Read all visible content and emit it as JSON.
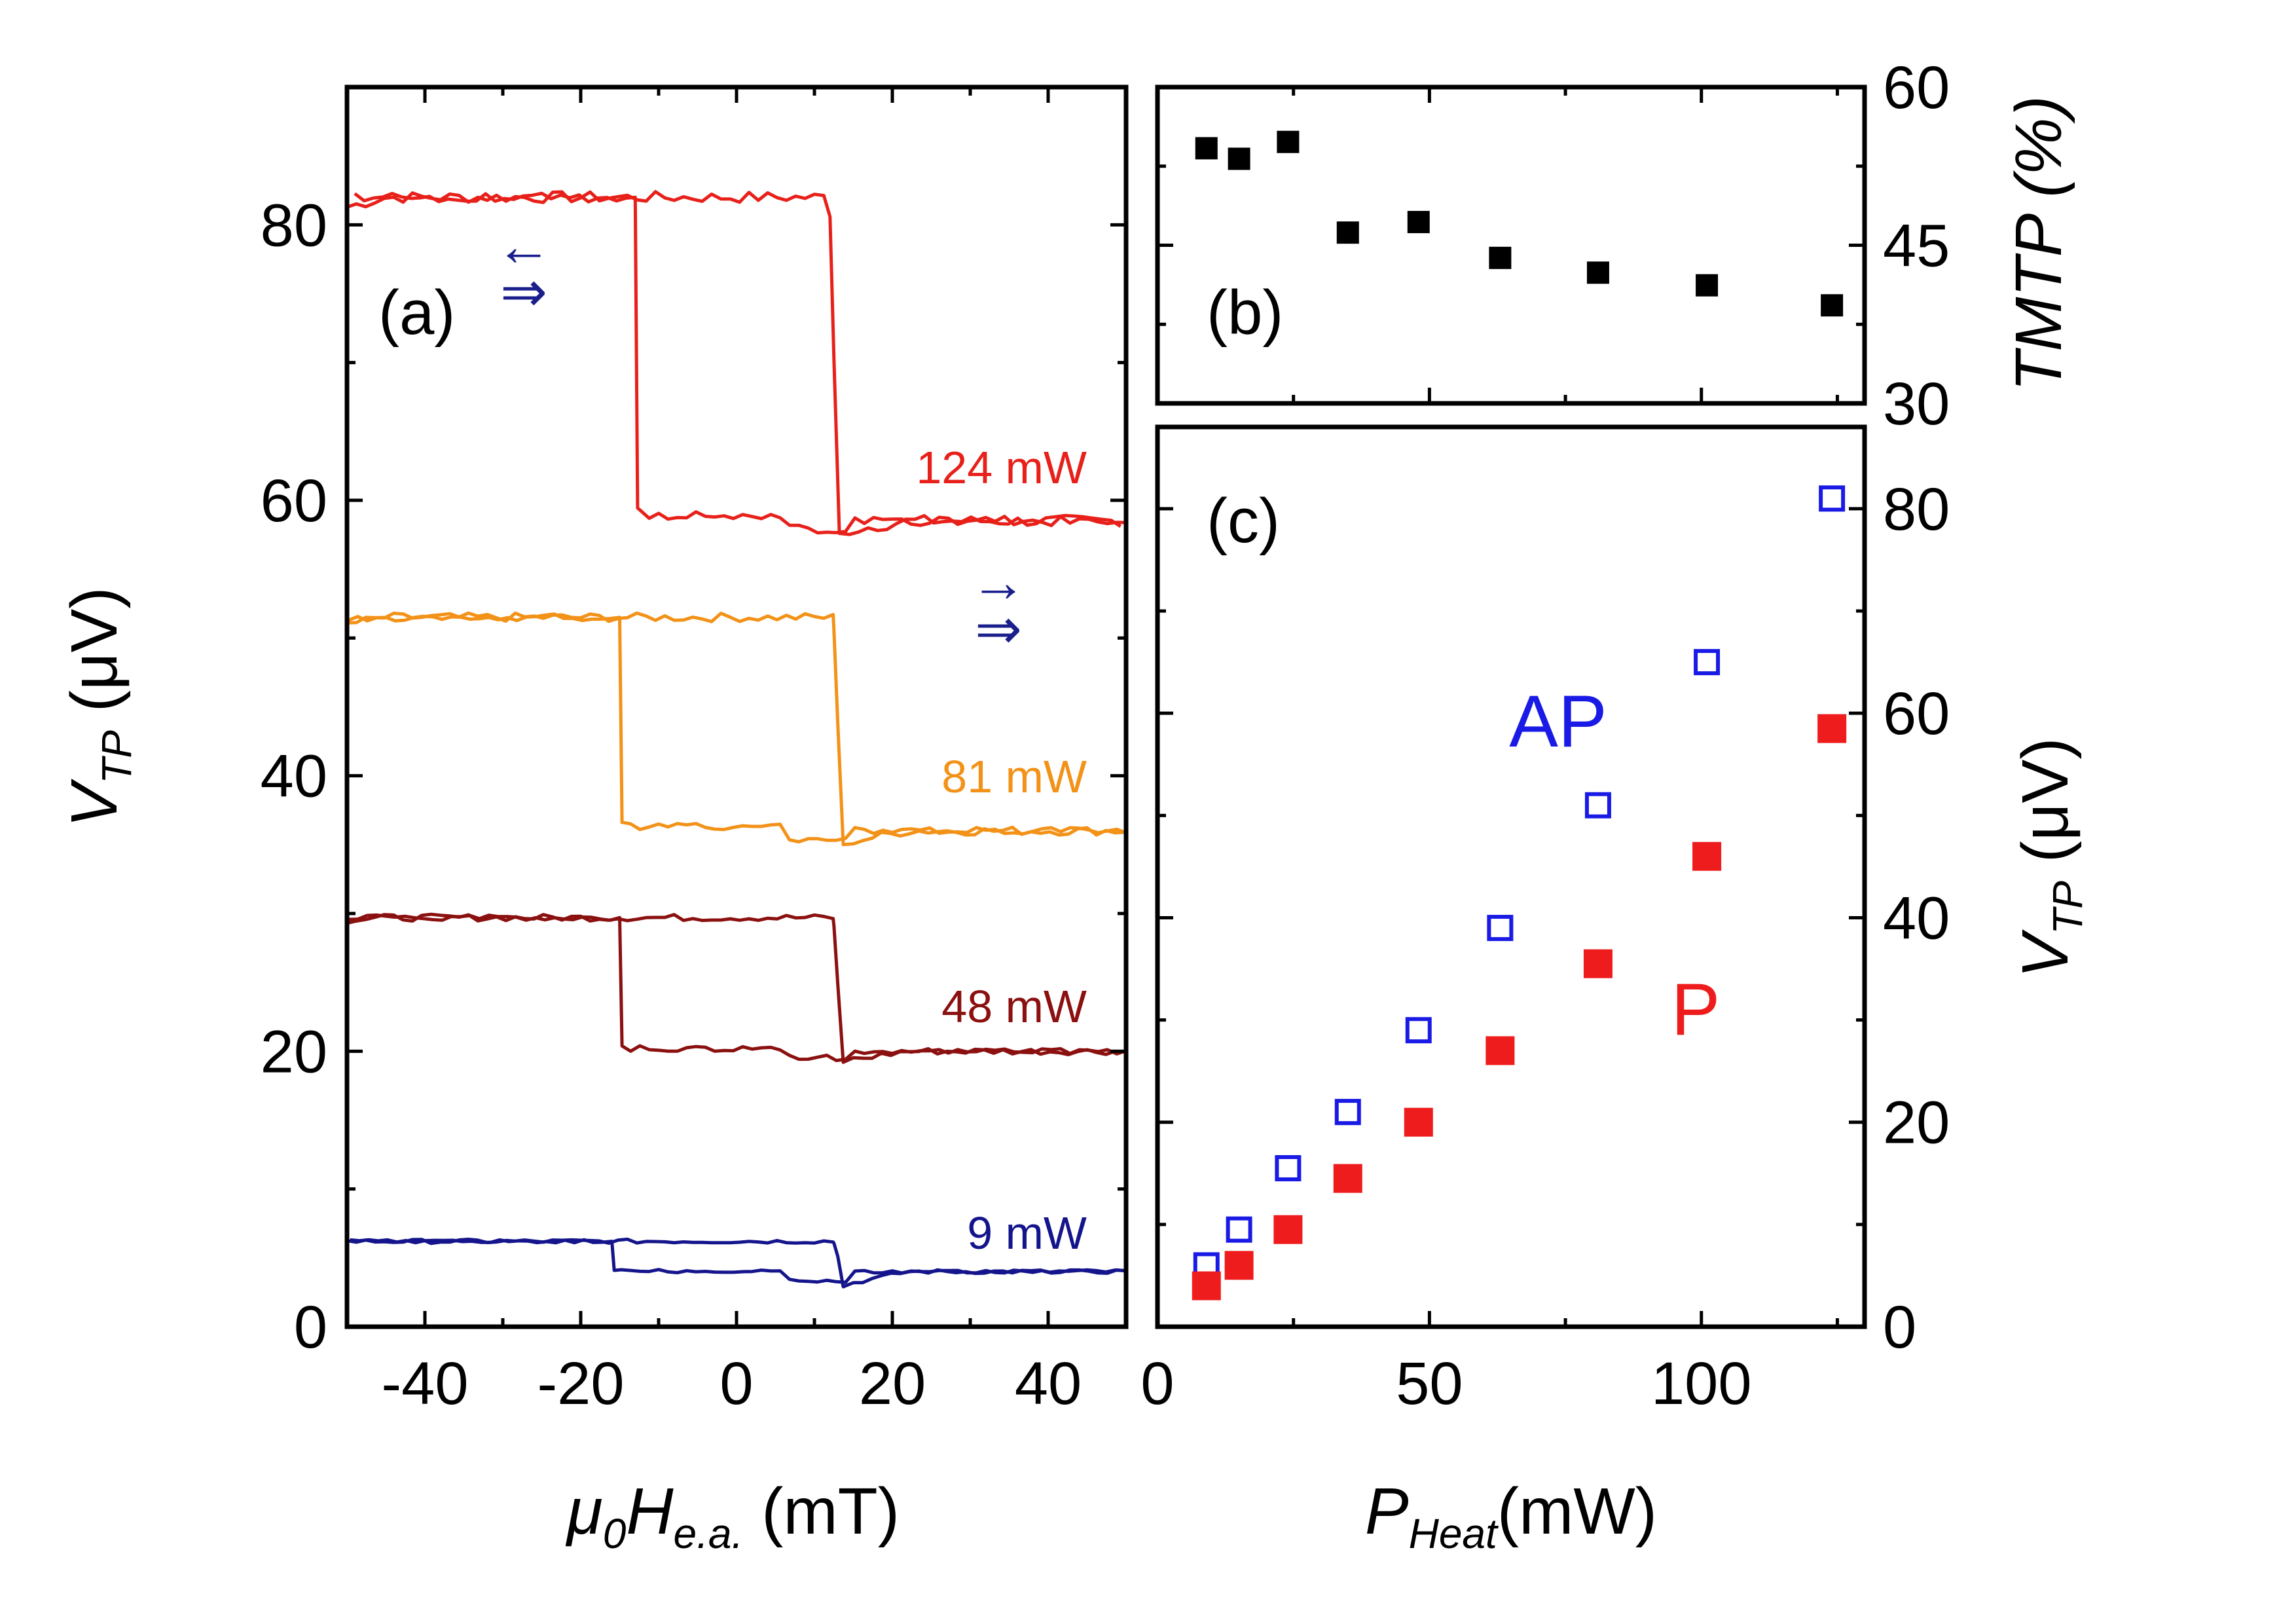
{
  "chart_data": [
    {
      "id": "a",
      "type": "line",
      "panel_label": "(a)",
      "xlabel_base": "μ",
      "xlabel_base_sub": "0",
      "xlabel_mid": "H",
      "xlabel_mid_sub": "e.a.",
      "xlabel_unit": " (mT)",
      "ylabel_base": "V",
      "ylabel_sub": "TP",
      "ylabel_unit": " (μV)",
      "xlim": [
        -50,
        50
      ],
      "ylim": [
        0,
        90
      ],
      "xticks": [
        -40,
        -20,
        0,
        20,
        40
      ],
      "yticks": [
        0,
        20,
        40,
        60,
        80
      ],
      "arrow_indicators": [
        {
          "top": "←",
          "bottom": "⇒",
          "position": "upper-left"
        },
        {
          "top": "→",
          "bottom": "⇒",
          "position": "middle-right"
        }
      ],
      "series": [
        {
          "name": "124 mW",
          "label": "124 mW",
          "color": "#e8201a",
          "high": 82,
          "low": 58.5,
          "switch_down": 12,
          "switch_up": -13,
          "high_start": 81.3,
          "low_min": 57.6
        },
        {
          "name": "81 mW",
          "label": "81 mW",
          "color": "#f39218",
          "high": 51.5,
          "low": 36,
          "switch_down": 12.5,
          "switch_up": -15,
          "high_start": 51.0,
          "low_min": 35.0
        },
        {
          "name": "48 mW",
          "label": "48 mW",
          "color": "#8b1010",
          "high": 29.7,
          "low": 20,
          "switch_down": 12.5,
          "switch_up": -15,
          "high_start": 29.5,
          "low_min": 19.2
        },
        {
          "name": "9 mW",
          "label": "9 mW",
          "color": "#14148c",
          "high": 6.2,
          "low": 4,
          "switch_down": 12.5,
          "switch_up": -16,
          "high_start": 6.2,
          "low_min": 2.9
        }
      ]
    },
    {
      "id": "b",
      "type": "scatter",
      "panel_label": "(b)",
      "ylabel": "TMTP (%)",
      "y_axis_side": "right",
      "xlim": [
        0,
        130
      ],
      "ylim": [
        30,
        60
      ],
      "yticks": [
        30,
        45,
        60
      ],
      "x": [
        9,
        15,
        24,
        35,
        48,
        63,
        81,
        101,
        124
      ],
      "y": [
        54.2,
        53.2,
        54.8,
        46.2,
        47.2,
        43.8,
        42.4,
        41.2,
        39.3
      ],
      "color": "#000000"
    },
    {
      "id": "c",
      "type": "scatter",
      "panel_label": "(c)",
      "xlabel_base": "P",
      "xlabel_sub": "Heat",
      "xlabel_unit": "(mW)",
      "ylabel_base": "V",
      "ylabel_sub": "TP",
      "ylabel_unit": " (μV)",
      "y_axis_side": "right",
      "xlim": [
        0,
        130
      ],
      "ylim": [
        0,
        88
      ],
      "xticks": [
        0,
        50,
        100
      ],
      "yticks": [
        0,
        20,
        40,
        60,
        80
      ],
      "series": [
        {
          "name": "AP",
          "label": "AP",
          "marker": "open-square",
          "color": "#1a1ae6",
          "x": [
            9,
            15,
            24,
            35,
            48,
            63,
            81,
            101,
            124
          ],
          "y": [
            6,
            9.5,
            15.5,
            21,
            29,
            39,
            51,
            65,
            81
          ]
        },
        {
          "name": "P",
          "label": "P",
          "marker": "filled-square",
          "color": "#ee1c1c",
          "x": [
            9,
            15,
            24,
            35,
            48,
            63,
            81,
            101,
            124
          ],
          "y": [
            4,
            6,
            9.5,
            14.5,
            20,
            27,
            35.5,
            46,
            58.5
          ]
        }
      ]
    }
  ]
}
